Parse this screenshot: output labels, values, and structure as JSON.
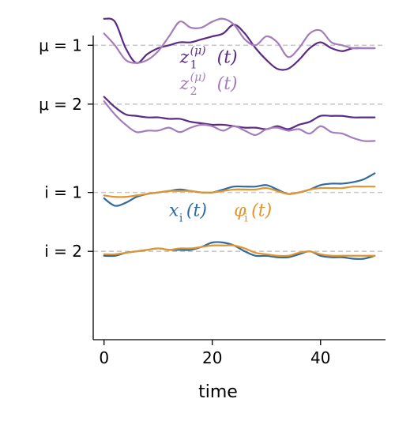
{
  "chart_data": {
    "type": "line",
    "xlabel": "time",
    "xlim": [
      -2,
      52
    ],
    "ylim": [
      0,
      11
    ],
    "x_ticks": [
      "0",
      "20",
      "40"
    ],
    "y_ticks": [
      {
        "label": "μ = 1",
        "value": 10
      },
      {
        "label": "μ = 2",
        "value": 8
      },
      {
        "label": "i = 1",
        "value": 5
      },
      {
        "label": "i = 2",
        "value": 3
      }
    ],
    "baselines": [
      10,
      8,
      5,
      3
    ],
    "x": [
      0,
      2,
      4,
      6,
      8,
      10,
      12,
      14,
      16,
      18,
      20,
      22,
      24,
      26,
      28,
      30,
      32,
      34,
      36,
      38,
      40,
      42,
      44,
      46,
      48,
      50
    ],
    "series": [
      {
        "name": "z₁(μ)(t)",
        "group": "μ = 1",
        "color": "#5b2a86",
        "values": [
          10.9,
          10.8,
          9.9,
          9.4,
          9.7,
          9.9,
          10.0,
          10.1,
          10.1,
          10.2,
          10.3,
          10.4,
          10.7,
          10.4,
          9.9,
          9.5,
          9.2,
          9.2,
          9.5,
          9.9,
          10.1,
          9.9,
          9.8,
          9.9,
          9.9,
          9.9
        ]
      },
      {
        "name": "z₂(μ)(t)",
        "group": "μ = 1",
        "color": "#a47cbc",
        "values": [
          10.4,
          10.0,
          9.5,
          9.4,
          9.5,
          9.8,
          10.3,
          10.8,
          10.6,
          10.6,
          10.8,
          10.9,
          10.7,
          10.2,
          10.0,
          10.3,
          10.1,
          9.6,
          9.9,
          10.4,
          10.5,
          10.1,
          10.0,
          9.9,
          9.9,
          9.9
        ]
      },
      {
        "name": "z₁(μ)(t)",
        "group": "μ = 2",
        "color": "#5b2a86",
        "values": [
          8.25,
          7.9,
          7.65,
          7.6,
          7.55,
          7.55,
          7.5,
          7.5,
          7.4,
          7.35,
          7.3,
          7.3,
          7.25,
          7.2,
          7.2,
          7.15,
          7.25,
          7.15,
          7.3,
          7.4,
          7.6,
          7.6,
          7.6,
          7.55,
          7.55,
          7.55
        ]
      },
      {
        "name": "z₂(μ)(t)",
        "group": "μ = 2",
        "color": "#a47cbc",
        "values": [
          8.1,
          7.65,
          7.3,
          7.05,
          7.1,
          7.1,
          7.2,
          7.05,
          7.2,
          7.3,
          7.25,
          7.1,
          7.25,
          7.1,
          6.95,
          7.15,
          7.2,
          7.1,
          7.15,
          7.0,
          7.25,
          7.05,
          7.0,
          6.85,
          6.75,
          6.75
        ]
      },
      {
        "name": "xᵢ(t)",
        "group": "i = 1",
        "color": "#2f6aa0",
        "values": [
          4.8,
          4.55,
          4.65,
          4.85,
          4.95,
          5.0,
          5.05,
          5.1,
          5.05,
          5.0,
          5.0,
          5.1,
          5.2,
          5.2,
          5.2,
          5.25,
          5.1,
          4.95,
          5.0,
          5.1,
          5.25,
          5.3,
          5.3,
          5.35,
          5.45,
          5.65
        ]
      },
      {
        "name": "φᵢ(t)",
        "group": "i = 1",
        "color": "#e0952f",
        "values": [
          4.9,
          4.85,
          4.85,
          4.9,
          4.95,
          5.0,
          5.05,
          5.05,
          5.05,
          5.0,
          5.0,
          5.05,
          5.1,
          5.1,
          5.1,
          5.15,
          5.05,
          4.95,
          5.0,
          5.1,
          5.15,
          5.15,
          5.15,
          5.2,
          5.2,
          5.2
        ]
      },
      {
        "name": "xᵢ(t)",
        "group": "i = 2",
        "color": "#2f6aa0",
        "values": [
          2.85,
          2.85,
          2.95,
          3.0,
          3.05,
          3.1,
          3.05,
          3.05,
          3.05,
          3.15,
          3.3,
          3.3,
          3.2,
          3.0,
          2.85,
          2.85,
          2.8,
          2.8,
          2.9,
          3.0,
          2.85,
          2.8,
          2.8,
          2.75,
          2.75,
          2.85
        ]
      },
      {
        "name": "φᵢ(t)",
        "group": "i = 2",
        "color": "#e0952f",
        "values": [
          2.9,
          2.9,
          2.95,
          3.0,
          3.05,
          3.1,
          3.05,
          3.1,
          3.1,
          3.15,
          3.2,
          3.2,
          3.2,
          3.1,
          2.95,
          2.9,
          2.85,
          2.85,
          2.95,
          3.0,
          2.9,
          2.85,
          2.85,
          2.85,
          2.85,
          2.85
        ]
      }
    ],
    "annotations": [
      {
        "id": "z1",
        "text": "z",
        "sub": "1",
        "sup": "(μ)",
        "suffix": "(t)",
        "color": "#5b2a86",
        "x": 14,
        "y": 9.4
      },
      {
        "id": "z2",
        "text": "z",
        "sub": "2",
        "sup": "(μ)",
        "suffix": "(t)",
        "color": "#a47cbc",
        "x": 14,
        "y": 8.5
      },
      {
        "id": "x",
        "text": "x",
        "sub": "i",
        "suffix": "(t)",
        "color": "#2f6aa0",
        "x": 12,
        "y": 4.2
      },
      {
        "id": "phi",
        "text": "φ",
        "sub": "i",
        "suffix": "(t)",
        "color": "#e0952f",
        "x": 24,
        "y": 4.2
      }
    ],
    "grid": false,
    "legend": "none"
  }
}
